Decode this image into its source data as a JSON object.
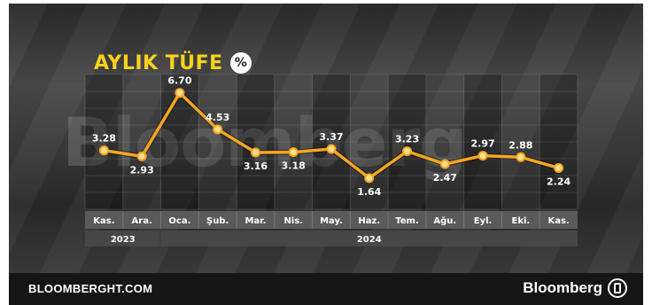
{
  "chart_data": {
    "type": "line",
    "title": "AYLIK TÜFE",
    "unit_badge": "%",
    "categories": [
      "Kas.",
      "Ara.",
      "Oca.",
      "Şub.",
      "Mar.",
      "Nis.",
      "May.",
      "Haz.",
      "Tem.",
      "Ağu.",
      "Eyl.",
      "Eki.",
      "Kas."
    ],
    "years": [
      {
        "label": "2023",
        "start_index": 0,
        "end_index": 1
      },
      {
        "label": "2024",
        "start_index": 2,
        "end_index": 12
      }
    ],
    "values": [
      3.28,
      2.93,
      6.7,
      4.53,
      3.16,
      3.18,
      3.37,
      1.64,
      3.23,
      2.47,
      2.97,
      2.88,
      2.24
    ],
    "value_labels": [
      "3.28",
      "2.93",
      "6.70",
      "4.53",
      "3.16",
      "3.18",
      "3.37",
      "1.64",
      "3.23",
      "2.47",
      "2.97",
      "2.88",
      "2.24"
    ],
    "label_position": [
      "above",
      "below",
      "above",
      "above",
      "below",
      "below",
      "above",
      "below",
      "above",
      "below",
      "above",
      "above",
      "below"
    ],
    "ylim": [
      0,
      8
    ],
    "grid": true,
    "line_color": "#f5a623",
    "marker_color": "#ffe08a"
  },
  "background": {
    "watermark": "Bloomberg"
  },
  "footer": {
    "left_text": "BLOOMBERGHT.COM",
    "brand_text": "Bloomberg",
    "brand_logo": "bloomberg-logo-icon",
    "background_color": "#151515"
  }
}
